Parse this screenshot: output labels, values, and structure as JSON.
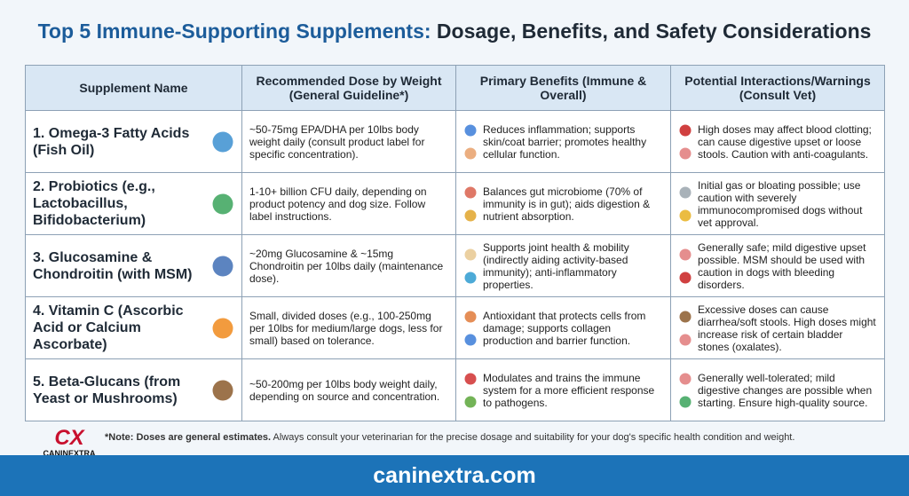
{
  "header": {
    "title_lead": "Top 5 Immune-Supporting Supplements:",
    "title_rest": "Dosage, Benefits, and Safety Considerations"
  },
  "table": {
    "columns": [
      "Supplement Name",
      "Recommended Dose by Weight (General Guideline*)",
      "Primary Benefits (Immune & Overall)",
      "Potential Interactions/Warnings (Consult Vet)"
    ],
    "rows": [
      [
        "1. Omega-3 Fatty Acids (Fish Oil)",
        "~50-75mg EPA/DHA per 10lbs body weight daily (consult product label for specific concentration).",
        "Reduces inflammation; supports skin/coat barrier; promotes healthy cellular function.",
        "High doses may affect blood clotting; can cause digestive upset or loose stools. Caution with anti-coagulants."
      ],
      [
        "2. Probiotics (e.g., Lactobacillus, Bifidobacterium)",
        "1-10+ billion CFU daily, depending on product potency and dog size. Follow label instructions.",
        "Balances gut microbiome (70% of immunity is in gut); aids digestion & nutrient absorption.",
        "Initial gas or bloating possible; use caution with severely immunocompromised dogs without vet approval."
      ],
      [
        "3. Glucosamine & Chondroitin (with MSM)",
        "~20mg Glucosamine & ~15mg Chondroitin per 10lbs daily (maintenance dose).",
        "Supports joint health & mobility (indirectly aiding activity-based immunity); anti-inflammatory properties.",
        "Generally safe; mild digestive upset possible. MSM should be used with caution in dogs with bleeding disorders."
      ],
      [
        "4. Vitamin C (Ascorbic Acid or Calcium Ascorbate)",
        "Small, divided doses (e.g., 100-250mg per 10lbs for medium/large dogs, less for small) based on tolerance.",
        "Antioxidant that protects cells from damage; supports collagen production and barrier function.",
        "Excessive doses can cause diarrhea/soft stools. High doses might increase risk of certain bladder stones (oxalates)."
      ],
      [
        "5. Beta-Glucans (from Yeast or Mushrooms)",
        "~50-200mg per 10lbs body weight daily, depending on source and concentration.",
        "Modulates and trains the immune system for a more efficient response to pathogens.",
        "Generally well-tolerated; mild digestive changes are possible when starting. Ensure high-quality source."
      ]
    ]
  },
  "note": {
    "bold": "*Note: Doses are general estimates.",
    "text": "Always consult your veterinarian for the precise dosage and suitability for your dog's specific health condition and weight."
  },
  "logo": {
    "mark": "CX",
    "name": "CANINEXTRA"
  },
  "footer": {
    "url": "caninextra.com"
  }
}
